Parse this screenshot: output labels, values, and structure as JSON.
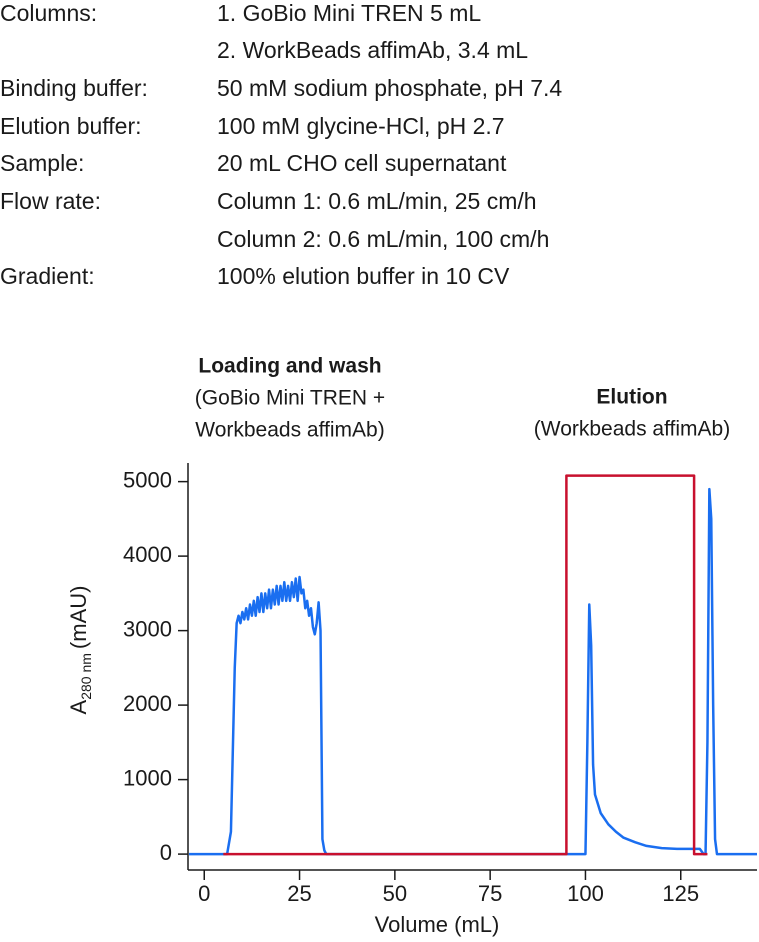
{
  "header": {
    "parameters": [
      {
        "label": "Columns:",
        "values": [
          "1. GoBio Mini TREN 5 mL",
          "2. WorkBeads affimAb, 3.4 mL"
        ]
      },
      {
        "label": "Binding buffer:",
        "values": [
          "50 mM sodium phosphate, pH 7.4"
        ]
      },
      {
        "label": "Elution buffer:",
        "values": [
          "100 mM glycine-HCl, pH 2.7"
        ]
      },
      {
        "label": "Sample:",
        "values": [
          "20 mL CHO cell supernatant"
        ]
      },
      {
        "label": "Flow rate:",
        "values": [
          "Column 1: 0.6 mL/min, 25 cm/h",
          "Column 2: 0.6 mL/min, 100 cm/h"
        ]
      },
      {
        "label": "Gradient:",
        "values": [
          "100% elution buffer in 10 CV"
        ]
      }
    ]
  },
  "chart_data": {
    "type": "line",
    "annotations": [
      {
        "title": "Loading and wash",
        "lines": [
          "(GoBio Mini TREN +",
          "Workbeads affimAb)"
        ]
      },
      {
        "title": "Elution",
        "lines": [
          "(Workbeads affimAb)"
        ]
      }
    ],
    "y_label": {
      "main": "A",
      "sub": "280 nm",
      "unit": "(mAU)"
    },
    "x_label": "Volume (mL)",
    "xlim": [
      -4,
      145
    ],
    "xticks": [
      0,
      25,
      50,
      75,
      100,
      125
    ],
    "ylim": [
      -200,
      5250
    ],
    "yticks": [
      0,
      1000,
      2000,
      3000,
      4000,
      5000
    ],
    "series": [
      {
        "color": "#1a6ef0",
        "x": [
          -4,
          6,
          7,
          8,
          8.5,
          9,
          9.5,
          10,
          10.5,
          11,
          11.5,
          12,
          12.5,
          13,
          13.5,
          14,
          14.5,
          15,
          15.5,
          16,
          16.5,
          17,
          17.5,
          18,
          18.5,
          19,
          19.5,
          20,
          20.5,
          21,
          21.5,
          22,
          22.5,
          23,
          23.5,
          24,
          24.5,
          25,
          25.5,
          26,
          26.5,
          27,
          27.5,
          28,
          28.5,
          29,
          29.5,
          30,
          30.5,
          31,
          31.5,
          32,
          100,
          100.5,
          101,
          101.5,
          102,
          102.5,
          104,
          106,
          108,
          110,
          113,
          116,
          120,
          124,
          128,
          130,
          131,
          131.5,
          132,
          132.5,
          133,
          133.5,
          134,
          134.5,
          135,
          145
        ],
        "values": [
          0,
          0,
          300,
          2500,
          3100,
          3200,
          3100,
          3250,
          3150,
          3300,
          3150,
          3350,
          3200,
          3400,
          3200,
          3450,
          3250,
          3500,
          3250,
          3500,
          3300,
          3550,
          3300,
          3550,
          3350,
          3600,
          3350,
          3600,
          3400,
          3650,
          3400,
          3600,
          3400,
          3650,
          3450,
          3700,
          3400,
          3720,
          3500,
          3550,
          3300,
          3400,
          3200,
          3300,
          3050,
          2950,
          3100,
          3380,
          3000,
          200,
          50,
          0,
          0,
          1500,
          3350,
          2800,
          1200,
          800,
          550,
          400,
          300,
          220,
          160,
          110,
          80,
          70,
          70,
          70,
          0,
          0,
          1500,
          4900,
          4500,
          2000,
          200,
          0,
          0,
          0
        ]
      },
      {
        "color": "#c8102e",
        "x": [
          5,
          95,
          95,
          128.5,
          128.5,
          132
        ],
        "values": [
          0,
          0,
          5080,
          5080,
          0,
          0
        ]
      }
    ]
  }
}
